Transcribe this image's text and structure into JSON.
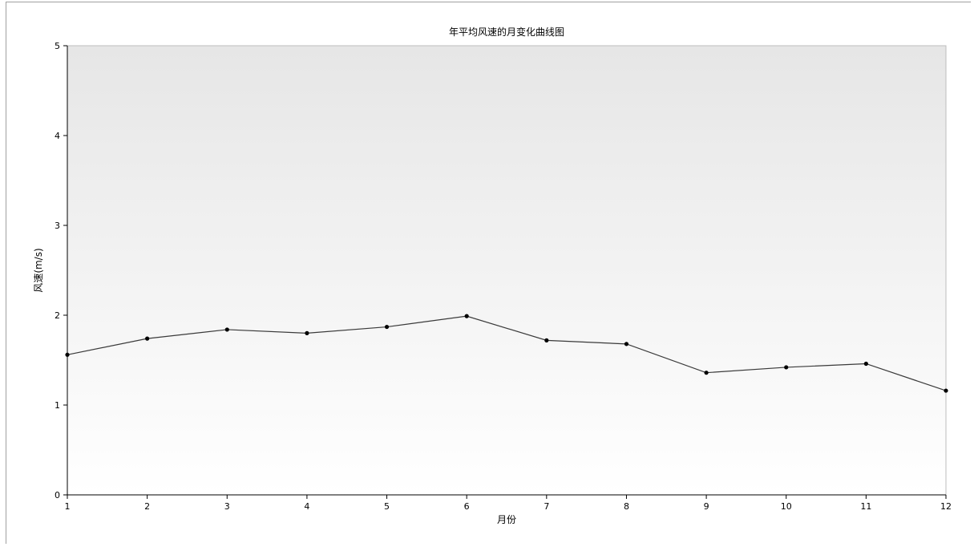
{
  "chart_data": {
    "type": "line",
    "title": "年平均风速的月变化曲线图",
    "xlabel": "月份",
    "ylabel": "风速(m/s)",
    "x": [
      1,
      2,
      3,
      4,
      5,
      6,
      7,
      8,
      9,
      10,
      11,
      12
    ],
    "x_ticks": [
      "1",
      "2",
      "3",
      "4",
      "5",
      "6",
      "7",
      "8",
      "9",
      "10",
      "11",
      "12"
    ],
    "xlim": [
      1,
      12
    ],
    "ylim": [
      0,
      5
    ],
    "y_ticks": [
      "0",
      "1",
      "2",
      "3",
      "4",
      "5"
    ],
    "series": [
      {
        "values": [
          1.56,
          1.74,
          1.84,
          1.8,
          1.87,
          1.99,
          1.72,
          1.68,
          1.36,
          1.42,
          1.46,
          1.16
        ]
      }
    ],
    "grid": false,
    "colors": {
      "line": "#3a3a3a",
      "marker": "#000000",
      "plot_bg_top": "#e6e6e6",
      "plot_bg_bottom": "#ffffff",
      "axis": "#000000"
    }
  }
}
